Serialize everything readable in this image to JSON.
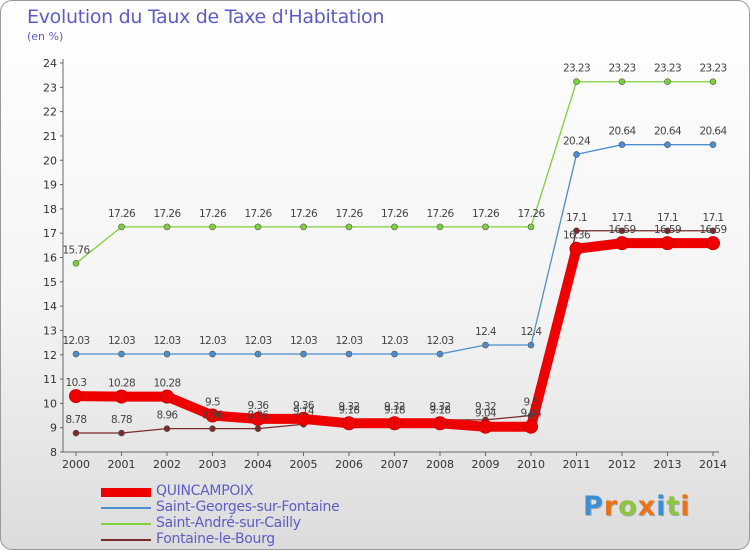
{
  "chart_data": {
    "type": "line",
    "title": "Evolution du Taux de Taxe d'Habitation",
    "subtitle": "(en %)",
    "categories": [
      "2000",
      "2001",
      "2002",
      "2003",
      "2004",
      "2005",
      "2006",
      "2007",
      "2008",
      "2009",
      "2010",
      "2011",
      "2012",
      "2013",
      "2014"
    ],
    "ylim": [
      8,
      24
    ],
    "yticks": [
      "8",
      "9",
      "10",
      "11",
      "12",
      "13",
      "14",
      "15",
      "16",
      "17",
      "18",
      "19",
      "20",
      "21",
      "22",
      "23",
      "24"
    ],
    "grid": false,
    "legend_position": "bottom-left",
    "series": [
      {
        "name": "QUINCAMPOIX",
        "color": "#ee0000",
        "values": [
          10.3,
          10.28,
          10.28,
          9.5,
          9.36,
          9.36,
          9.18,
          9.18,
          9.18,
          9.04,
          9.04,
          16.36,
          16.59,
          16.59,
          16.59
        ],
        "labels": [
          "10.3",
          "10.28",
          "10.28",
          "9.5",
          "9.36",
          "9.36",
          "9.18",
          "9.18",
          "9.18",
          "9.04",
          "9.04",
          "16.36",
          "16.59",
          "16.59",
          "16.59"
        ]
      },
      {
        "name": "Saint-Georges-sur-Fontaine",
        "color": "#4b8ed0",
        "values": [
          12.03,
          12.03,
          12.03,
          12.03,
          12.03,
          12.03,
          12.03,
          12.03,
          12.03,
          12.4,
          12.4,
          20.24,
          20.64,
          20.64,
          20.64
        ],
        "labels": [
          "12.03",
          "12.03",
          "12.03",
          "12.03",
          "12.03",
          "12.03",
          "12.03",
          "12.03",
          "12.03",
          "12.4",
          "12.4",
          "20.24",
          "20.64",
          "20.64",
          "20.64"
        ]
      },
      {
        "name": "Saint-André-sur-Cailly",
        "color": "#7ed13a",
        "values": [
          15.76,
          17.26,
          17.26,
          17.26,
          17.26,
          17.26,
          17.26,
          17.26,
          17.26,
          17.26,
          17.26,
          23.23,
          23.23,
          23.23,
          23.23
        ],
        "labels": [
          "15.76",
          "17.26",
          "17.26",
          "17.26",
          "17.26",
          "17.26",
          "17.26",
          "17.26",
          "17.26",
          "17.26",
          "17.26",
          "23.23",
          "23.23",
          "23.23",
          "23.23"
        ]
      },
      {
        "name": "Fontaine-le-Bourg",
        "color": "#7a2a2a",
        "values": [
          8.78,
          8.78,
          8.96,
          8.96,
          8.96,
          9.14,
          9.32,
          9.32,
          9.32,
          9.32,
          9.5,
          17.1,
          17.1,
          17.1,
          17.1
        ],
        "labels": [
          "8.78",
          "8.78",
          "8.96",
          "8.96",
          "8.96",
          "9.14",
          "9.32",
          "9.32",
          "9.32",
          "9.32",
          "9.5",
          "17.1",
          "17.1",
          "17.1",
          "17.1"
        ]
      }
    ]
  },
  "logo": {
    "letters": [
      "P",
      "r",
      "o",
      "x",
      "i",
      "t",
      "i"
    ],
    "colors": [
      "#3a8fd4",
      "#e8731a",
      "#8cc63e",
      "#e8731a",
      "#3a8fd4",
      "#8cc63e",
      "#e8731a"
    ]
  }
}
